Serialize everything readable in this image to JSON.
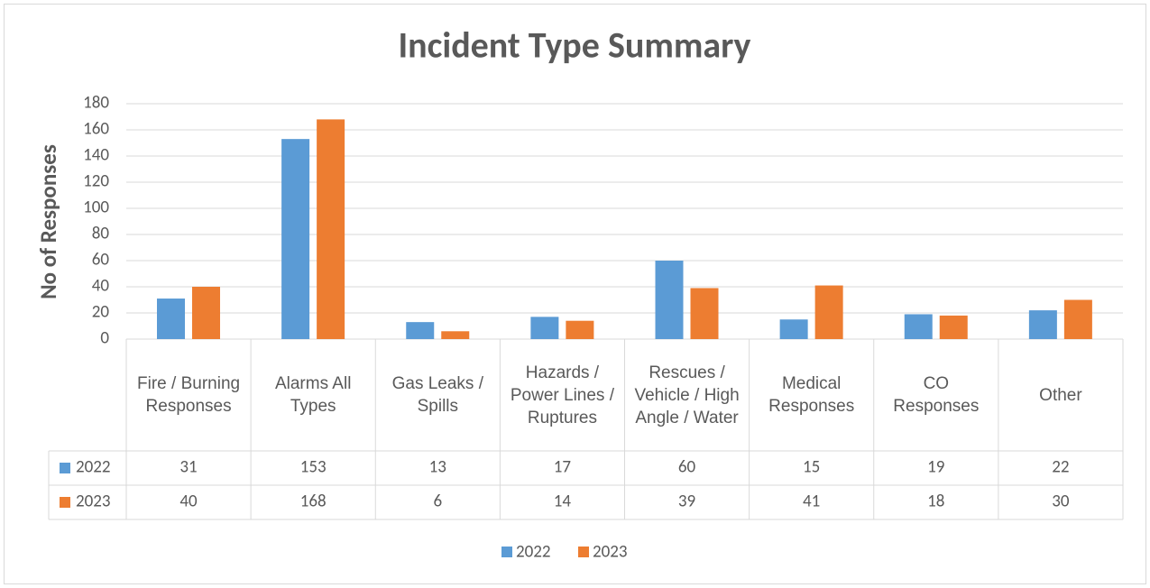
{
  "chart_data": {
    "type": "bar",
    "title": "Incident Type Summary",
    "y_label": "No of Responses",
    "categories": [
      "Fire / Burning Responses",
      "Alarms All Types",
      "Gas Leaks / Spills",
      "Hazards / Power Lines / Ruptures",
      "Rescues / Vehicle / High Angle / Water",
      "Medical Responses",
      "CO Responses",
      "Other"
    ],
    "series": [
      {
        "name": "2022",
        "color": "#5b9bd5",
        "values": [
          31,
          153,
          13,
          17,
          60,
          15,
          19,
          22
        ]
      },
      {
        "name": "2023",
        "color": "#ed7d31",
        "values": [
          40,
          168,
          6,
          14,
          39,
          41,
          18,
          30
        ]
      }
    ],
    "ylim": [
      0,
      180
    ],
    "yticks": [
      0,
      20,
      40,
      60,
      80,
      100,
      120,
      140,
      160,
      180
    ],
    "grid": true,
    "legend": "bottom",
    "data_table": true
  }
}
